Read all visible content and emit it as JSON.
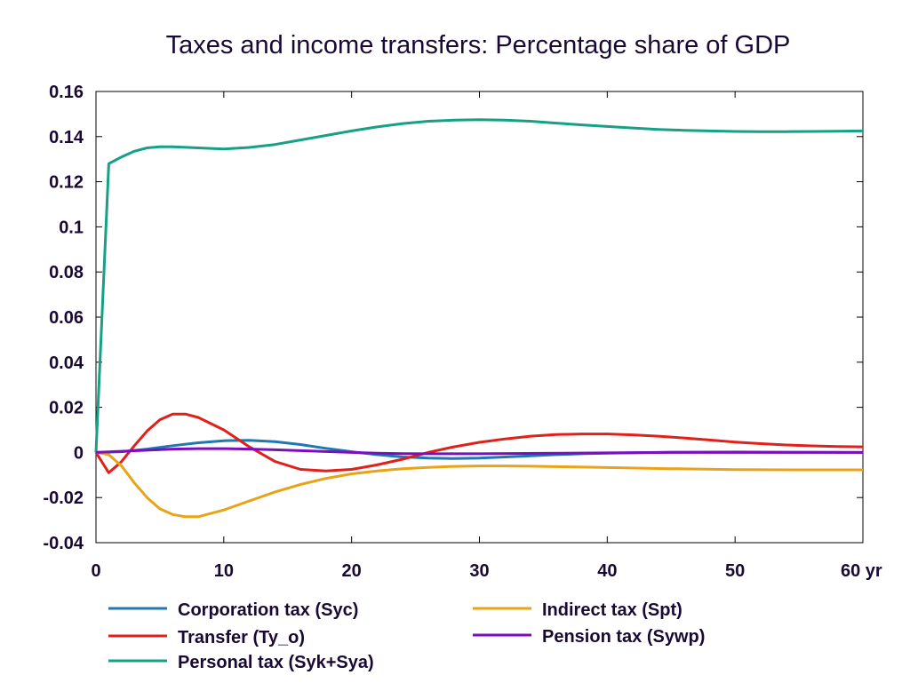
{
  "chart_data": {
    "type": "line",
    "title": "Taxes and income transfers: Percentage share of GDP",
    "xlabel": "",
    "ylabel": "",
    "x_unit_label": "yr",
    "xlim": [
      0,
      60
    ],
    "ylim": [
      -0.04,
      0.16
    ],
    "x_ticks": [
      0,
      10,
      20,
      30,
      40,
      50,
      60
    ],
    "x_tick_labels": [
      "0",
      "10",
      "20",
      "30",
      "40",
      "50",
      "60"
    ],
    "y_ticks": [
      -0.04,
      -0.02,
      0,
      0.02,
      0.04,
      0.06,
      0.08,
      0.1,
      0.12,
      0.14,
      0.16
    ],
    "y_tick_labels": [
      "-0.04",
      "-0.02",
      "0",
      "0.02",
      "0.04",
      "0.06",
      "0.08",
      "0.1",
      "0.12",
      "0.14",
      "0.16"
    ],
    "grid": false,
    "legend_position": "bottom",
    "series": [
      {
        "name": "Corporation tax (Syc)",
        "color": "#1f77b4",
        "x": [
          0,
          2,
          4,
          6,
          8,
          10,
          12,
          14,
          16,
          18,
          20,
          22,
          24,
          26,
          28,
          30,
          32,
          34,
          36,
          38,
          40,
          45,
          50,
          55,
          60
        ],
        "y": [
          0,
          0.0003,
          0.0015,
          0.003,
          0.0043,
          0.0052,
          0.0054,
          0.0048,
          0.0035,
          0.0018,
          0.0003,
          -0.001,
          -0.002,
          -0.0025,
          -0.0027,
          -0.0025,
          -0.002,
          -0.0015,
          -0.001,
          -0.0006,
          -0.0003,
          0.0001,
          0.0002,
          0.0001,
          0
        ]
      },
      {
        "name": "Transfer (Ty_o)",
        "color": "#e0201b",
        "x": [
          0,
          1,
          2,
          3,
          4,
          5,
          6,
          7,
          8,
          10,
          12,
          14,
          16,
          18,
          20,
          22,
          24,
          26,
          28,
          30,
          32,
          34,
          36,
          38,
          40,
          42,
          44,
          46,
          48,
          50,
          52,
          54,
          56,
          58,
          60
        ],
        "y": [
          0,
          -0.009,
          -0.004,
          0.003,
          0.0095,
          0.0145,
          0.017,
          0.017,
          0.0155,
          0.01,
          0.0025,
          -0.004,
          -0.0075,
          -0.0082,
          -0.0075,
          -0.0055,
          -0.003,
          0,
          0.0025,
          0.0045,
          0.006,
          0.0072,
          0.0079,
          0.0082,
          0.0082,
          0.0078,
          0.0072,
          0.0064,
          0.0055,
          0.0046,
          0.0039,
          0.0033,
          0.0029,
          0.0026,
          0.0025
        ]
      },
      {
        "name": "Personal tax (Syk+Sya)",
        "color": "#16a085",
        "x": [
          0,
          1,
          2,
          3,
          4,
          5,
          6,
          8,
          10,
          12,
          14,
          16,
          18,
          20,
          22,
          24,
          26,
          28,
          30,
          32,
          34,
          36,
          38,
          40,
          42,
          44,
          46,
          48,
          50,
          52,
          54,
          56,
          58,
          60
        ],
        "y": [
          0,
          0.128,
          0.131,
          0.1335,
          0.135,
          0.1355,
          0.1355,
          0.135,
          0.1345,
          0.1352,
          0.1365,
          0.1385,
          0.1405,
          0.1425,
          0.1443,
          0.1458,
          0.1468,
          0.1473,
          0.1475,
          0.1473,
          0.1468,
          0.146,
          0.1452,
          0.1445,
          0.1438,
          0.1432,
          0.1428,
          0.1425,
          0.1423,
          0.1422,
          0.1422,
          0.1423,
          0.1424,
          0.1425
        ]
      },
      {
        "name": "Indirect tax (Spt)",
        "color": "#e8a317",
        "x": [
          0,
          1,
          2,
          3,
          4,
          5,
          6,
          7,
          8,
          10,
          12,
          14,
          16,
          18,
          20,
          22,
          24,
          26,
          28,
          30,
          32,
          34,
          36,
          40,
          45,
          50,
          55,
          60
        ],
        "y": [
          0,
          -0.001,
          -0.006,
          -0.0135,
          -0.02,
          -0.025,
          -0.0275,
          -0.0285,
          -0.0285,
          -0.0255,
          -0.0215,
          -0.0175,
          -0.0142,
          -0.0115,
          -0.0095,
          -0.0082,
          -0.0072,
          -0.0066,
          -0.0062,
          -0.006,
          -0.006,
          -0.0061,
          -0.0063,
          -0.0067,
          -0.0072,
          -0.0076,
          -0.0077,
          -0.0077
        ]
      },
      {
        "name": "Pension tax (Sywp)",
        "color": "#7a0fbf",
        "x": [
          0,
          2,
          4,
          6,
          8,
          10,
          12,
          14,
          16,
          18,
          20,
          22,
          24,
          26,
          28,
          30,
          35,
          40,
          45,
          50,
          55,
          60
        ],
        "y": [
          0,
          0.0005,
          0.001,
          0.0015,
          0.0017,
          0.0017,
          0.0015,
          0.0012,
          0.0008,
          0.0004,
          0,
          -0.0003,
          -0.0005,
          -0.0006,
          -0.0006,
          -0.0006,
          -0.0004,
          -0.0002,
          0,
          0,
          0,
          0
        ]
      }
    ]
  }
}
